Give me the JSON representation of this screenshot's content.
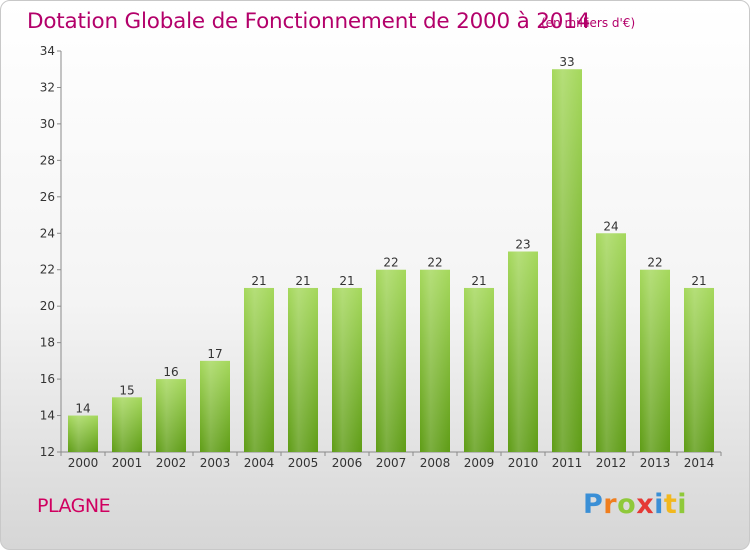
{
  "header": {
    "title": "Dotation Globale de Fonctionnement de 2000 à 2014",
    "unit": "(en milliers d'€)"
  },
  "footer": {
    "commune": "PLAGNE",
    "logo_text": "Proxiti"
  },
  "colors": {
    "title": "#b3006a",
    "commune": "#d00060",
    "bar_light": "#9fd454",
    "bar_dark": "#5f9e16"
  },
  "chart_data": {
    "type": "bar",
    "title": "Dotation Globale de Fonctionnement de 2000 à 2014",
    "subtitle": "(en milliers d'€)",
    "xlabel": "",
    "ylabel": "",
    "categories": [
      "2000",
      "2001",
      "2002",
      "2003",
      "2004",
      "2005",
      "2006",
      "2007",
      "2008",
      "2009",
      "2010",
      "2011",
      "2012",
      "2013",
      "2014"
    ],
    "values": [
      14,
      15,
      16,
      17,
      21,
      21,
      21,
      22,
      22,
      21,
      23,
      33,
      24,
      22,
      21
    ],
    "ylim": [
      12,
      34
    ],
    "yticks": [
      12,
      14,
      16,
      18,
      20,
      22,
      24,
      26,
      28,
      30,
      32,
      34
    ],
    "grid": false,
    "data_labels": true
  }
}
